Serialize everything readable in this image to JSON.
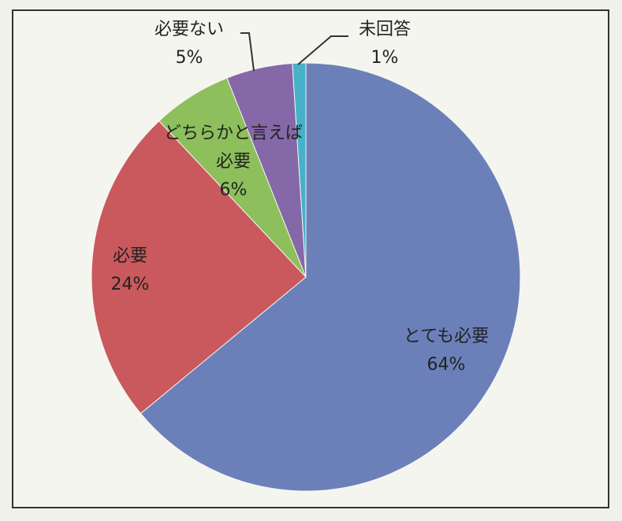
{
  "chart_data": {
    "type": "pie",
    "categories": [
      "とても必要",
      "必要",
      "どちらかと言えば必要",
      "必要ない",
      "未回答"
    ],
    "values": [
      64,
      24,
      6,
      5,
      1
    ],
    "value_labels": [
      "64%",
      "24%",
      "6%",
      "5%",
      "1%"
    ],
    "colors": [
      "#6b80b9",
      "#c9595c",
      "#8dbf5c",
      "#8568a8",
      "#46b1c9"
    ],
    "start_angle": 0,
    "direction": "clockwise"
  }
}
